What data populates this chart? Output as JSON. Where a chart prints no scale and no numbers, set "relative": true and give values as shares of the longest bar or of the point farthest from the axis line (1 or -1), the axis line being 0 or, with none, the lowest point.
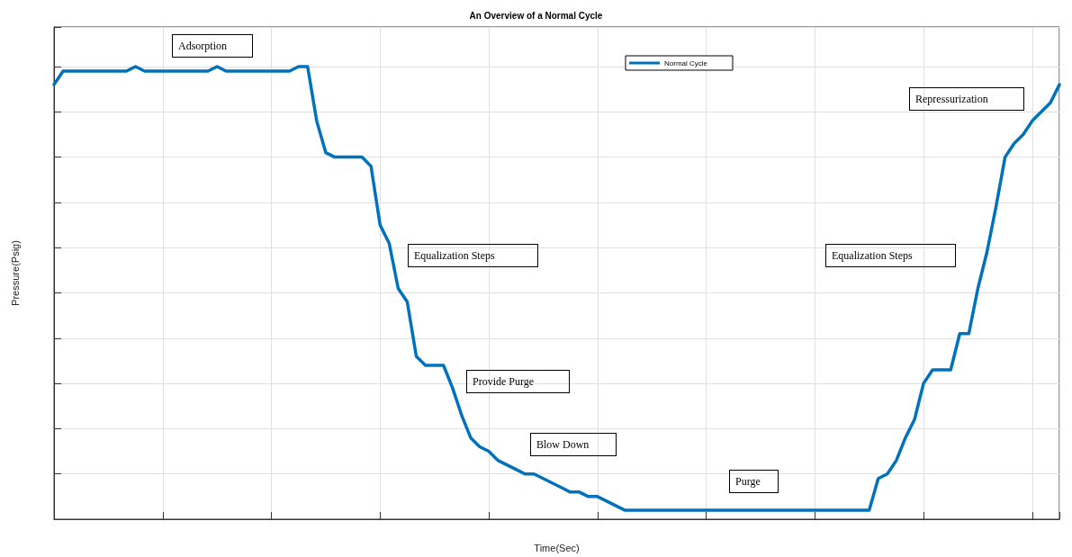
{
  "chart_data": {
    "type": "line",
    "title": "An Overview of a Normal Cycle",
    "xlabel": "Time(Sec)",
    "ylabel": "Pressure(Psig)",
    "relative": true,
    "tick_labels": false,
    "grid": true,
    "legend": "top",
    "marker": "none",
    "line_style": "solid",
    "annotations": [
      "Adsorption",
      "Equalization Steps",
      "Provide Purge",
      "Blow Down",
      "Purge",
      "Equalization Steps",
      "Repressurization"
    ],
    "categories": [
      null,
      null,
      null,
      null,
      null,
      null,
      null,
      null,
      null,
      null,
      null,
      null,
      null,
      null,
      null,
      null,
      null,
      null,
      null,
      null,
      null,
      null,
      null,
      null,
      null,
      null,
      null,
      null,
      null,
      null,
      null,
      null,
      null,
      null,
      null,
      null,
      null,
      null,
      null,
      null,
      null,
      null,
      null,
      null,
      null,
      null,
      null,
      null,
      null,
      null,
      null,
      null,
      null,
      null,
      null,
      null,
      null,
      null,
      null,
      null,
      null,
      null,
      null,
      null,
      null,
      null,
      null,
      null,
      null,
      null,
      null,
      null,
      null,
      null,
      null,
      null,
      null,
      null,
      null,
      null,
      null,
      null,
      null,
      null,
      null,
      null,
      null,
      null,
      null,
      null,
      null,
      null,
      null,
      null,
      null,
      null,
      null,
      null,
      null,
      null,
      null,
      null,
      null,
      null,
      null,
      null,
      null,
      null,
      null,
      null,
      null,
      null
    ],
    "series": [
      {
        "name": "Normal Cycle",
        "color": "#0072bd",
        "values": [
          0.96,
          0.99,
          0.99,
          0.99,
          0.99,
          0.99,
          0.99,
          0.99,
          0.99,
          1.0,
          0.99,
          0.99,
          0.99,
          0.99,
          0.99,
          0.99,
          0.99,
          0.99,
          1.0,
          0.99,
          0.99,
          0.99,
          0.99,
          0.99,
          0.99,
          0.99,
          0.99,
          1.0,
          1.0,
          0.88,
          0.81,
          0.8,
          0.8,
          0.8,
          0.8,
          0.78,
          0.65,
          0.61,
          0.51,
          0.48,
          0.36,
          0.34,
          0.34,
          0.34,
          0.29,
          0.23,
          0.18,
          0.16,
          0.15,
          0.13,
          0.12,
          0.11,
          0.1,
          0.1,
          0.09,
          0.08,
          0.07,
          0.06,
          0.06,
          0.05,
          0.05,
          0.04,
          0.03,
          0.02,
          0.02,
          0.02,
          0.02,
          0.02,
          0.02,
          0.02,
          0.02,
          0.02,
          0.02,
          0.02,
          0.02,
          0.02,
          0.02,
          0.02,
          0.02,
          0.02,
          0.02,
          0.02,
          0.02,
          0.02,
          0.02,
          0.02,
          0.02,
          0.02,
          0.02,
          0.02,
          0.02,
          0.09,
          0.1,
          0.13,
          0.18,
          0.22,
          0.3,
          0.33,
          0.33,
          0.33,
          0.41,
          0.41,
          0.51,
          0.59,
          0.69,
          0.8,
          0.83,
          0.85,
          0.88,
          0.9,
          0.92,
          0.96
        ]
      }
    ]
  }
}
